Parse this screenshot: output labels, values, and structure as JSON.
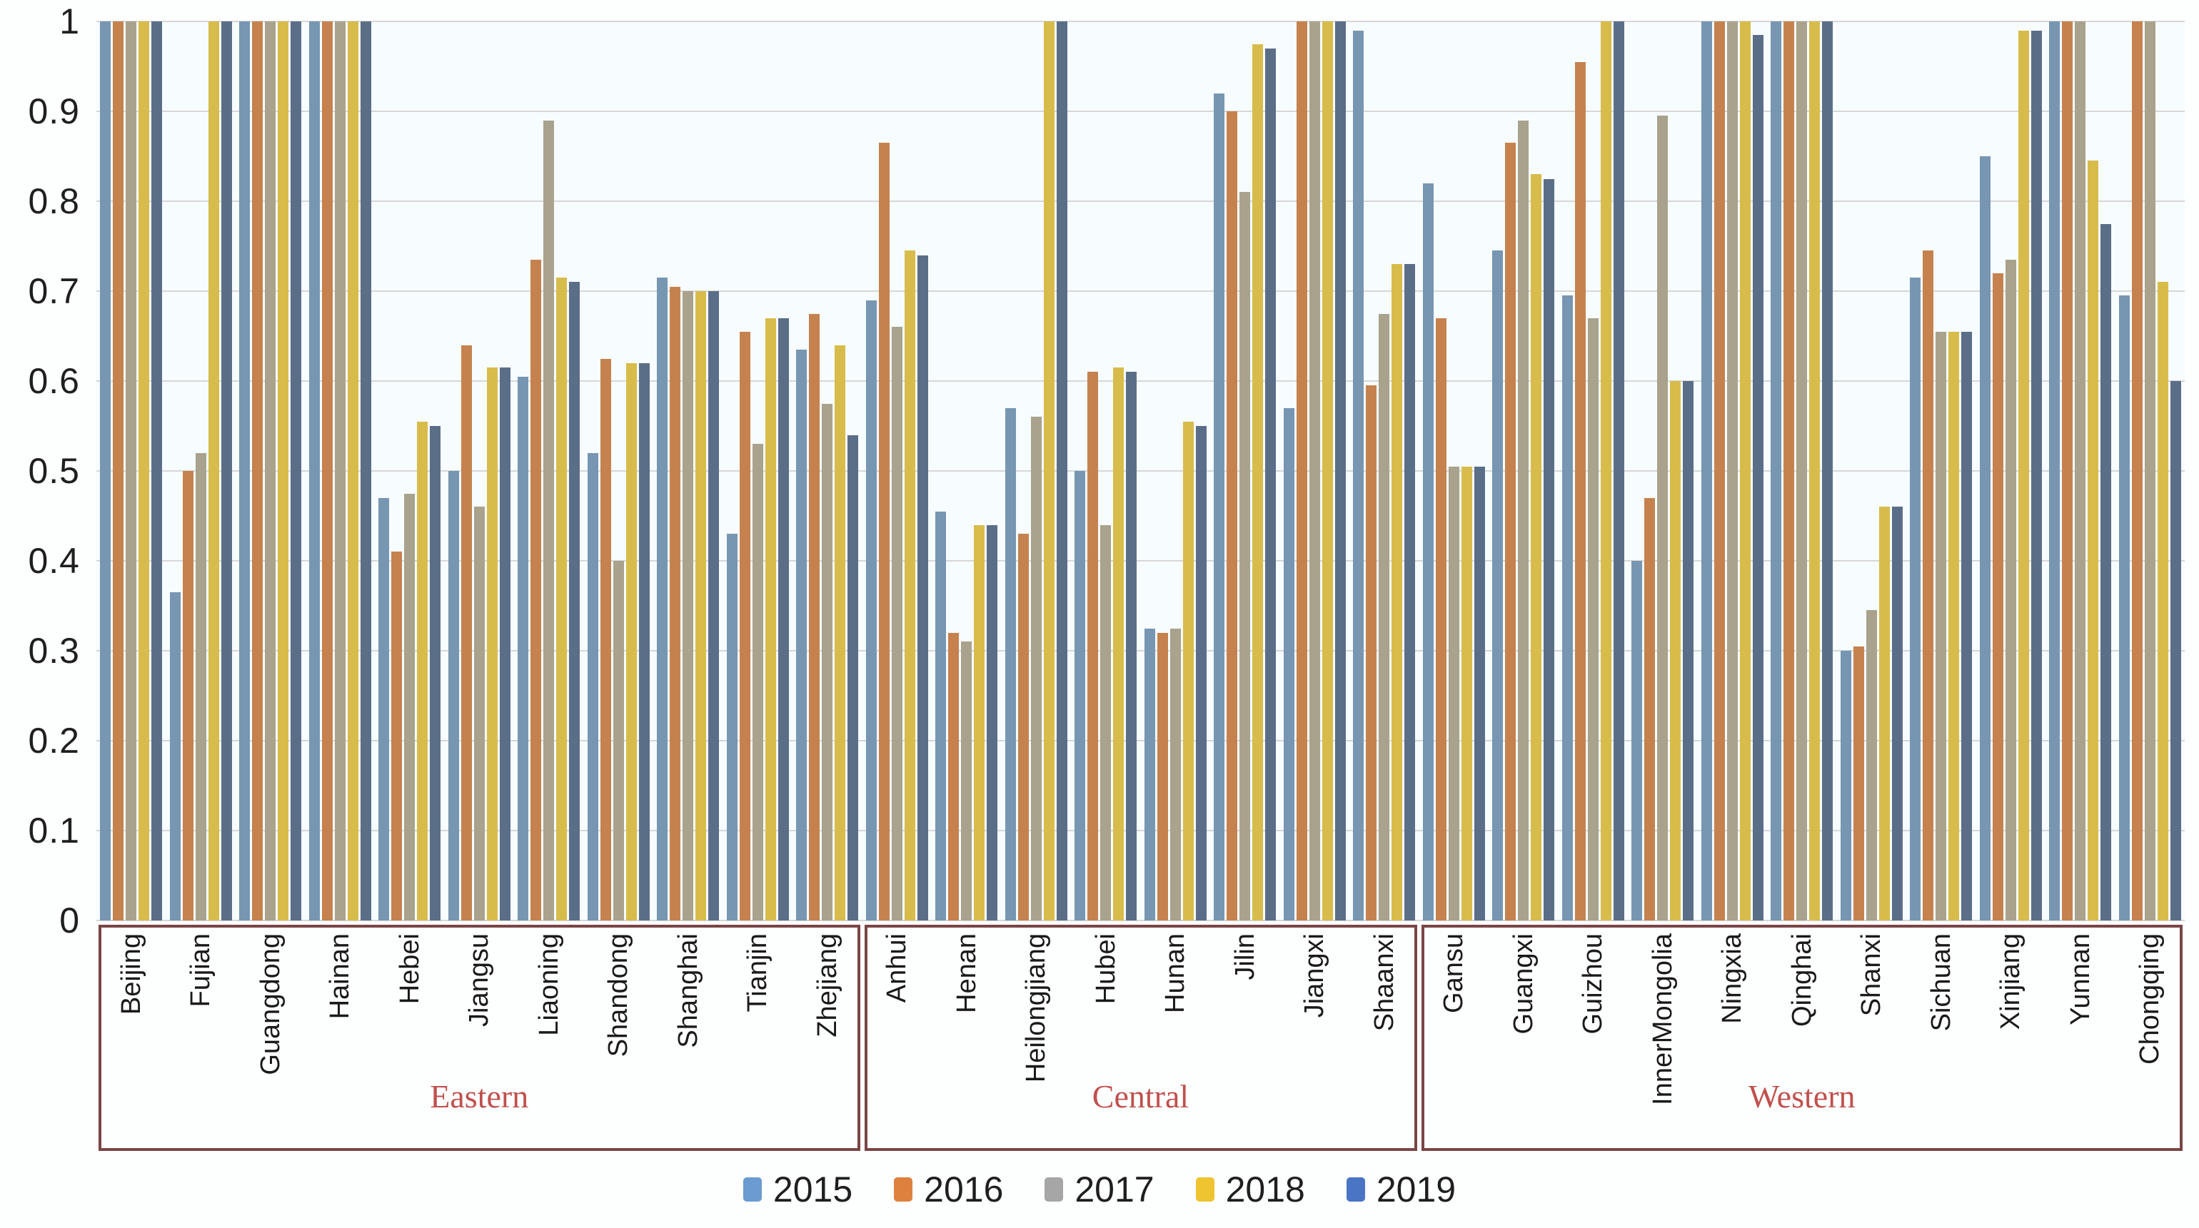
{
  "chart_data": {
    "type": "bar",
    "title": "",
    "xlabel": "",
    "ylabel": "",
    "ylim": [
      0,
      1
    ],
    "grid": true,
    "legend_position": "bottom",
    "ytick_labels": [
      "0",
      "0.1",
      "0.2",
      "0.3",
      "0.4",
      "0.5",
      "0.6",
      "0.7",
      "0.8",
      "0.9",
      "1"
    ],
    "series": [
      {
        "name": "2015",
        "bar_color": "#7796b2",
        "legend_color": "#6b9bd1"
      },
      {
        "name": "2016",
        "bar_color": "#c5824e",
        "legend_color": "#df813e"
      },
      {
        "name": "2017",
        "bar_color": "#a9a28c",
        "legend_color": "#a6a6a6"
      },
      {
        "name": "2018",
        "bar_color": "#d8bc4b",
        "legend_color": "#eec430"
      },
      {
        "name": "2019",
        "bar_color": "#5b6e88",
        "legend_color": "#4a74c4"
      }
    ],
    "region_label_color": "#c0504d",
    "region_border_color": "#7a4545",
    "regions": [
      {
        "label": "Eastern",
        "provinces": [
          {
            "name": "Beijing",
            "values": [
              1,
              1,
              1,
              1,
              1
            ]
          },
          {
            "name": "Fujian",
            "values": [
              0.365,
              0.5,
              0.52,
              1,
              1
            ]
          },
          {
            "name": "Guangdong",
            "values": [
              1,
              1,
              1,
              1,
              1
            ]
          },
          {
            "name": "Hainan",
            "values": [
              1,
              1,
              1,
              1,
              1
            ]
          },
          {
            "name": "Hebei",
            "values": [
              0.47,
              0.41,
              0.475,
              0.555,
              0.55
            ]
          },
          {
            "name": "Jiangsu",
            "values": [
              0.5,
              0.64,
              0.46,
              0.615,
              0.615
            ]
          },
          {
            "name": "Liaoning",
            "values": [
              0.605,
              0.735,
              0.89,
              0.715,
              0.71
            ]
          },
          {
            "name": "Shandong",
            "values": [
              0.52,
              0.625,
              0.4,
              0.62,
              0.62
            ]
          },
          {
            "name": "Shanghai",
            "values": [
              0.715,
              0.705,
              0.7,
              0.7,
              0.7
            ]
          },
          {
            "name": "Tianjin",
            "values": [
              0.43,
              0.655,
              0.53,
              0.67,
              0.67
            ]
          },
          {
            "name": "Zhejiang",
            "values": [
              0.635,
              0.675,
              0.575,
              0.64,
              0.54
            ]
          }
        ]
      },
      {
        "label": "Central",
        "provinces": [
          {
            "name": "Anhui",
            "values": [
              0.69,
              0.865,
              0.66,
              0.745,
              0.74
            ]
          },
          {
            "name": "Henan",
            "values": [
              0.455,
              0.32,
              0.31,
              0.44,
              0.44
            ]
          },
          {
            "name": "Heilongjiang",
            "values": [
              0.57,
              0.43,
              0.56,
              1,
              1
            ]
          },
          {
            "name": "Hubei",
            "values": [
              0.5,
              0.61,
              0.44,
              0.615,
              0.61
            ]
          },
          {
            "name": "Hunan",
            "values": [
              0.325,
              0.32,
              0.325,
              0.555,
              0.55
            ]
          },
          {
            "name": "Jilin",
            "values": [
              0.92,
              0.9,
              0.81,
              0.975,
              0.97
            ]
          },
          {
            "name": "Jiangxi",
            "values": [
              0.57,
              1,
              1,
              1,
              1
            ]
          },
          {
            "name": "Shaanxi",
            "values": [
              0.99,
              0.595,
              0.675,
              0.73,
              0.73
            ]
          }
        ]
      },
      {
        "label": "Western",
        "provinces": [
          {
            "name": "Gansu",
            "values": [
              0.82,
              0.67,
              0.505,
              0.505,
              0.505
            ]
          },
          {
            "name": "Guangxi",
            "values": [
              0.745,
              0.865,
              0.89,
              0.83,
              0.825
            ]
          },
          {
            "name": "Guizhou",
            "values": [
              0.695,
              0.955,
              0.67,
              1,
              1
            ]
          },
          {
            "name": "InnerMongolia",
            "values": [
              0.4,
              0.47,
              0.895,
              0.6,
              0.6
            ]
          },
          {
            "name": "Ningxia",
            "values": [
              1,
              1,
              1,
              1,
              0.985
            ]
          },
          {
            "name": "Qinghai",
            "values": [
              1,
              1,
              1,
              1,
              1
            ]
          },
          {
            "name": "Shanxi",
            "values": [
              0.3,
              0.305,
              0.345,
              0.46,
              0.46
            ]
          },
          {
            "name": "Sichuan",
            "values": [
              0.715,
              0.745,
              0.655,
              0.655,
              0.655
            ]
          },
          {
            "name": "Xinjiang",
            "values": [
              0.85,
              0.72,
              0.735,
              0.99,
              0.99
            ]
          },
          {
            "name": "Yunnan",
            "values": [
              1,
              1,
              1,
              0.845,
              0.775
            ]
          },
          {
            "name": "Chongqing",
            "values": [
              0.695,
              1,
              1,
              0.71,
              0.6
            ]
          }
        ]
      }
    ]
  }
}
